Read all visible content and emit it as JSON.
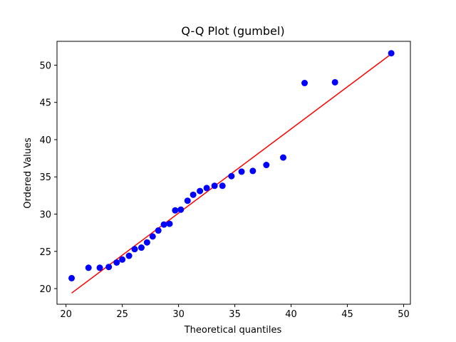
{
  "chart_data": {
    "type": "scatter",
    "title": "Q-Q Plot (gumbel)",
    "xlabel": "Theoretical quantiles",
    "ylabel": "Ordered Values",
    "xlim": [
      19.2,
      50.6
    ],
    "ylim": [
      17.9,
      53.2
    ],
    "xticks": [
      20,
      25,
      30,
      35,
      40,
      45,
      50
    ],
    "yticks": [
      20,
      25,
      30,
      35,
      40,
      45,
      50
    ],
    "grid": false,
    "points_color": "#0000ff",
    "line_color": "#ff0000",
    "series": [
      {
        "x": [
          20.5,
          22.0,
          23.0,
          23.8,
          24.5,
          25.0,
          25.6,
          26.1,
          26.7,
          27.2,
          27.7,
          28.2,
          28.7,
          29.2,
          29.7,
          30.2,
          30.8,
          31.3,
          31.9,
          32.5,
          33.2,
          33.9,
          34.7,
          35.6,
          36.6,
          37.8,
          39.3,
          41.2,
          43.9,
          48.9
        ],
        "y": [
          21.4,
          22.8,
          22.8,
          22.9,
          23.5,
          23.9,
          24.4,
          25.3,
          25.5,
          26.2,
          27.0,
          27.8,
          28.6,
          28.7,
          30.5,
          30.6,
          31.8,
          32.6,
          33.1,
          33.5,
          33.8,
          33.8,
          35.1,
          35.7,
          35.8,
          36.6,
          37.6,
          47.6,
          47.7,
          51.6
        ]
      }
    ],
    "fit_line": {
      "x": [
        20.5,
        48.9
      ],
      "y": [
        19.4,
        51.5
      ]
    }
  }
}
